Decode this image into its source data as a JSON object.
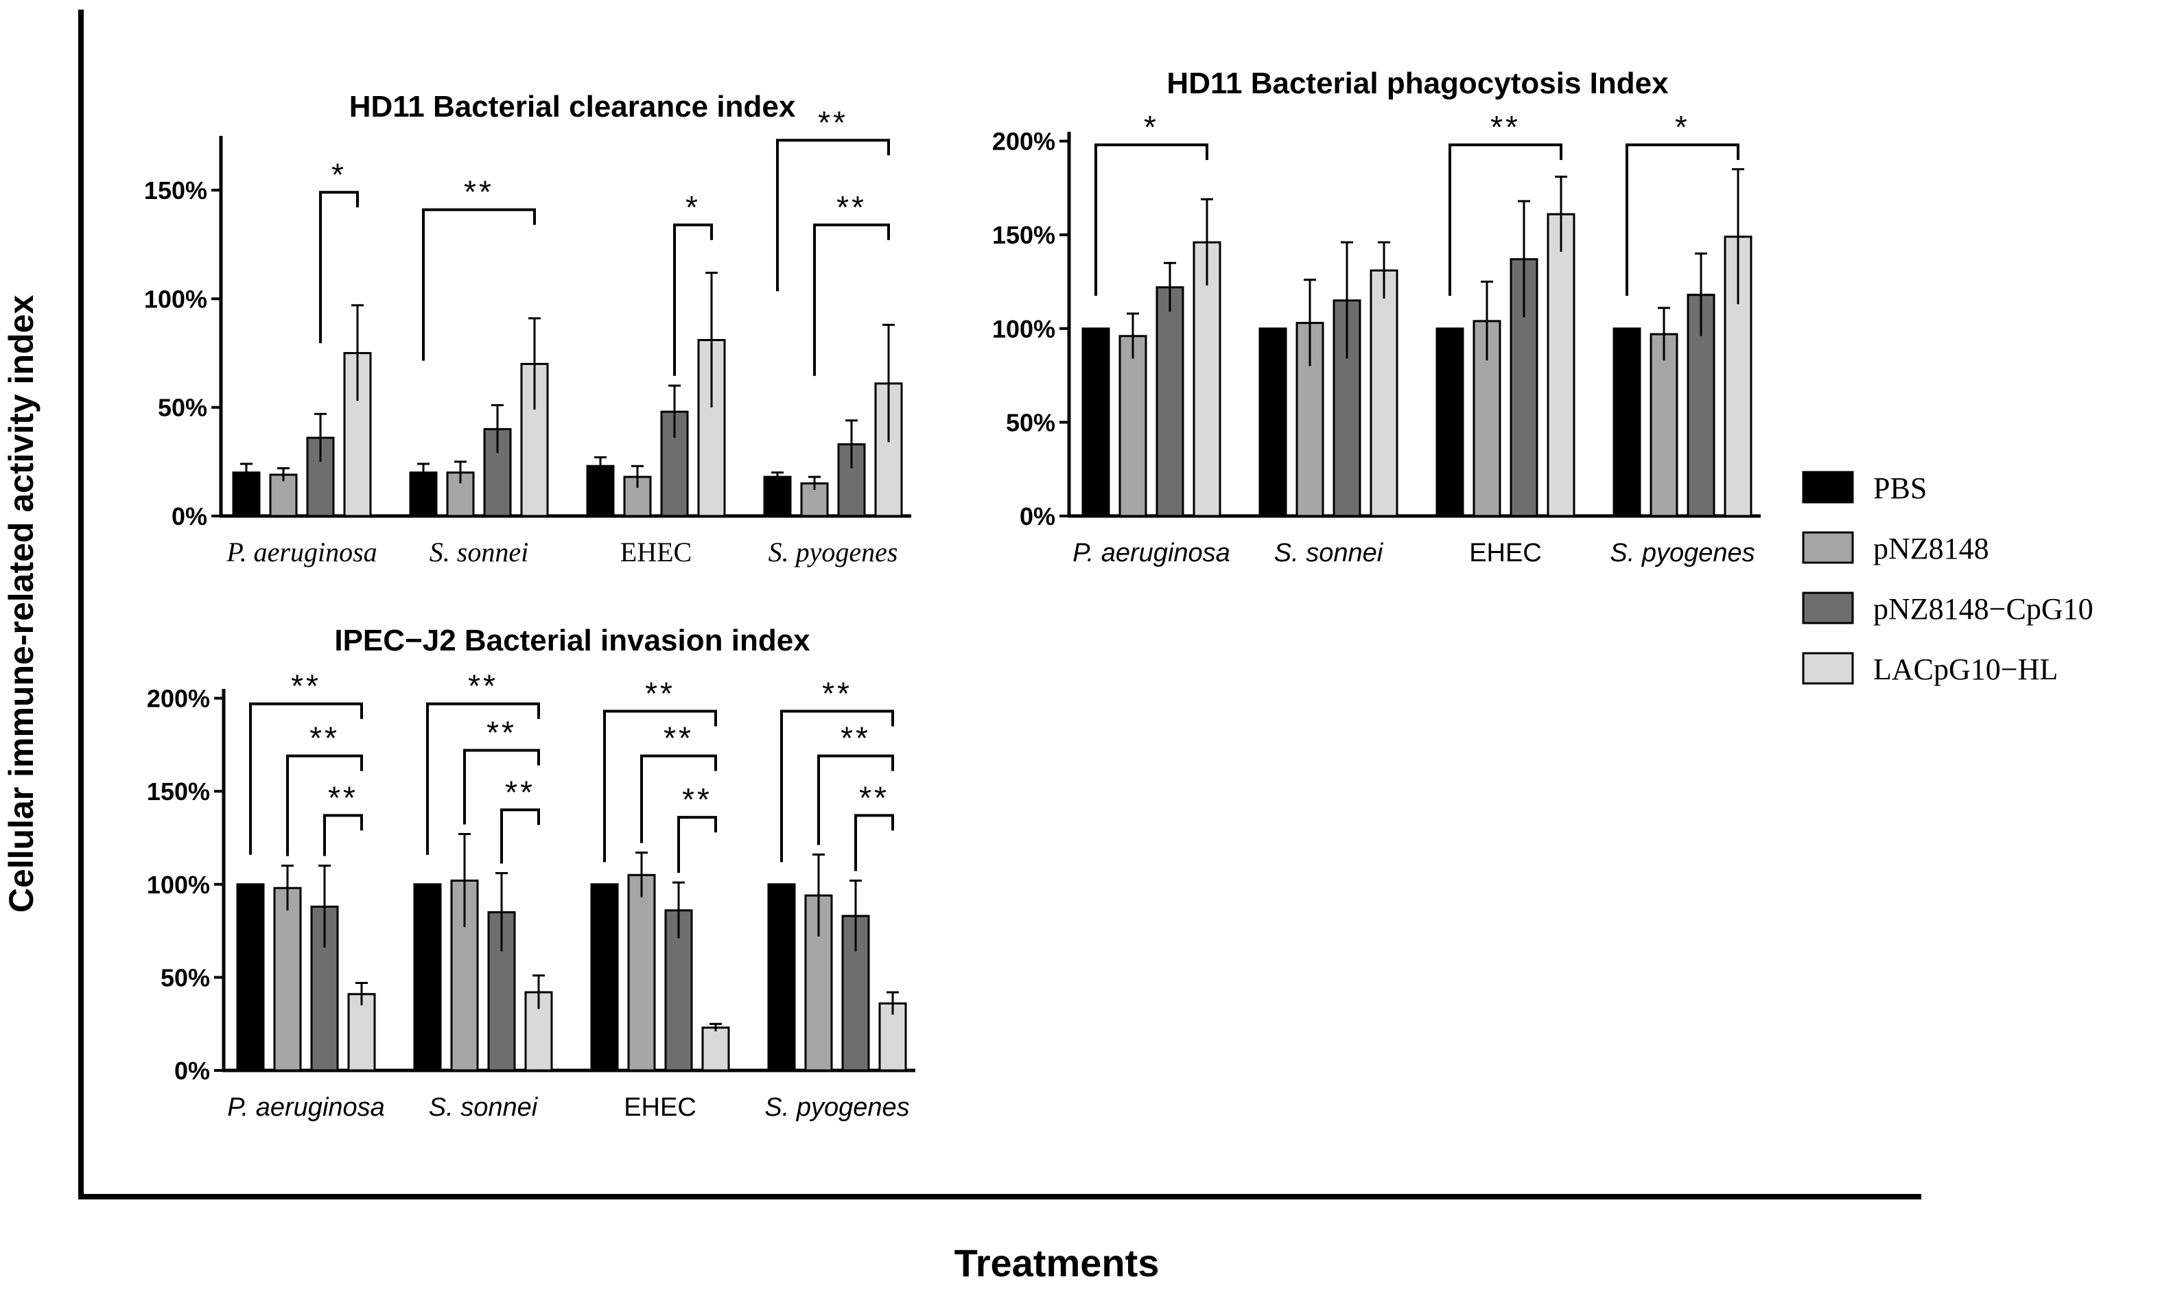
{
  "figure": {
    "y_axis_label": "Cellular immune-related activity index",
    "x_axis_label": "Treatments"
  },
  "legend": {
    "entries": [
      {
        "label": "PBS",
        "color": "#000000"
      },
      {
        "label": "pNZ8148",
        "color": "#a6a6a6"
      },
      {
        "label": "pNZ8148−CpG10",
        "color": "#6e6e6e"
      },
      {
        "label": "LACpG10−HL",
        "color": "#d9d9d9"
      }
    ]
  },
  "chart_data": [
    {
      "id": "clearance",
      "type": "bar",
      "title": "HD11 Bacterial clearance index",
      "categories": [
        "P. aeruginosa",
        "S. sonnei",
        "EHEC",
        "S. pyogenes"
      ],
      "category_label_style": "serif",
      "ylim": [
        0,
        1.75
      ],
      "yticks": [
        0,
        0.5,
        1.0,
        1.5
      ],
      "ytick_labels": [
        "0%",
        "50%",
        "100%",
        "150%"
      ],
      "series": [
        {
          "name": "PBS",
          "values": [
            0.2,
            0.2,
            0.23,
            0.18
          ],
          "errors": [
            0.04,
            0.04,
            0.04,
            0.02
          ]
        },
        {
          "name": "pNZ8148",
          "values": [
            0.19,
            0.2,
            0.18,
            0.15
          ],
          "errors": [
            0.03,
            0.05,
            0.05,
            0.03
          ]
        },
        {
          "name": "pNZ8148−CpG10",
          "values": [
            0.36,
            0.4,
            0.48,
            0.33
          ],
          "errors": [
            0.11,
            0.11,
            0.12,
            0.11
          ]
        },
        {
          "name": "LACpG10−HL",
          "values": [
            0.75,
            0.7,
            0.81,
            0.61
          ],
          "errors": [
            0.22,
            0.21,
            0.31,
            0.27
          ]
        }
      ],
      "significance": [
        {
          "category": 0,
          "from": 2,
          "to": 3,
          "level": 1.49,
          "label": "*"
        },
        {
          "category": 1,
          "from": 0,
          "to": 3,
          "level": 1.41,
          "label": "**"
        },
        {
          "category": 2,
          "from": 2,
          "to": 3,
          "level": 1.34,
          "label": "*"
        },
        {
          "category": 3,
          "from": 0,
          "to": 3,
          "level": 1.73,
          "label": "**"
        },
        {
          "category": 3,
          "from": 1,
          "to": 3,
          "level": 1.34,
          "label": "**"
        }
      ]
    },
    {
      "id": "phagocytosis",
      "type": "bar",
      "title": "HD11 Bacterial phagocytosis Index",
      "categories": [
        "P. aeruginosa",
        "S. sonnei",
        "EHEC",
        "S. pyogenes"
      ],
      "category_label_style": "sans-italic",
      "ylim": [
        0,
        2.05
      ],
      "yticks": [
        0,
        0.5,
        1.0,
        1.5,
        2.0
      ],
      "ytick_labels": [
        "0%",
        "50%",
        "100%",
        "150%",
        "200%"
      ],
      "series": [
        {
          "name": "PBS",
          "values": [
            1.0,
            1.0,
            1.0,
            1.0
          ],
          "errors": [
            0,
            0,
            0,
            0
          ]
        },
        {
          "name": "pNZ8148",
          "values": [
            0.96,
            1.03,
            1.04,
            0.97
          ],
          "errors": [
            0.12,
            0.23,
            0.21,
            0.14
          ]
        },
        {
          "name": "pNZ8148−CpG10",
          "values": [
            1.22,
            1.15,
            1.37,
            1.18
          ],
          "errors": [
            0.13,
            0.31,
            0.31,
            0.22
          ]
        },
        {
          "name": "LACpG10−HL",
          "values": [
            1.46,
            1.31,
            1.61,
            1.49
          ],
          "errors": [
            0.23,
            0.15,
            0.2,
            0.36
          ]
        }
      ],
      "significance": [
        {
          "category": 0,
          "from": 0,
          "to": 3,
          "level": 1.98,
          "label": "*"
        },
        {
          "category": 2,
          "from": 0,
          "to": 3,
          "level": 1.98,
          "label": "**"
        },
        {
          "category": 3,
          "from": 0,
          "to": 3,
          "level": 1.98,
          "label": "*"
        }
      ]
    },
    {
      "id": "invasion",
      "type": "bar",
      "title": "IPEC−J2 Bacterial invasion index",
      "categories": [
        "P. aeruginosa",
        "S. sonnei",
        "EHEC",
        "S. pyogenes"
      ],
      "category_label_style": "sans-italic",
      "ylim": [
        0,
        2.05
      ],
      "yticks": [
        0,
        0.5,
        1.0,
        1.5,
        2.0
      ],
      "ytick_labels": [
        "0%",
        "50%",
        "100%",
        "150%",
        "200%"
      ],
      "series": [
        {
          "name": "PBS",
          "values": [
            1.0,
            1.0,
            1.0,
            1.0
          ],
          "errors": [
            0,
            0,
            0,
            0
          ]
        },
        {
          "name": "pNZ8148",
          "values": [
            0.98,
            1.02,
            1.05,
            0.94
          ],
          "errors": [
            0.12,
            0.25,
            0.12,
            0.22
          ]
        },
        {
          "name": "pNZ8148−CpG10",
          "values": [
            0.88,
            0.85,
            0.86,
            0.83
          ],
          "errors": [
            0.22,
            0.21,
            0.15,
            0.19
          ]
        },
        {
          "name": "LACpG10−HL",
          "values": [
            0.41,
            0.42,
            0.23,
            0.36
          ],
          "errors": [
            0.06,
            0.09,
            0.02,
            0.06
          ]
        }
      ],
      "significance": [
        {
          "category": 0,
          "from": 0,
          "to": 3,
          "level": 1.97,
          "label": "**"
        },
        {
          "category": 0,
          "from": 1,
          "to": 3,
          "level": 1.69,
          "label": "**"
        },
        {
          "category": 0,
          "from": 2,
          "to": 3,
          "level": 1.37,
          "label": "**"
        },
        {
          "category": 1,
          "from": 0,
          "to": 3,
          "level": 1.97,
          "label": "**"
        },
        {
          "category": 1,
          "from": 1,
          "to": 3,
          "level": 1.72,
          "label": "**"
        },
        {
          "category": 1,
          "from": 2,
          "to": 3,
          "level": 1.4,
          "label": "**"
        },
        {
          "category": 2,
          "from": 0,
          "to": 3,
          "level": 1.93,
          "label": "**"
        },
        {
          "category": 2,
          "from": 1,
          "to": 3,
          "level": 1.69,
          "label": "**"
        },
        {
          "category": 2,
          "from": 2,
          "to": 3,
          "level": 1.36,
          "label": "**"
        },
        {
          "category": 3,
          "from": 0,
          "to": 3,
          "level": 1.93,
          "label": "**"
        },
        {
          "category": 3,
          "from": 1,
          "to": 3,
          "level": 1.69,
          "label": "**"
        },
        {
          "category": 3,
          "from": 2,
          "to": 3,
          "level": 1.37,
          "label": "**"
        }
      ]
    }
  ]
}
